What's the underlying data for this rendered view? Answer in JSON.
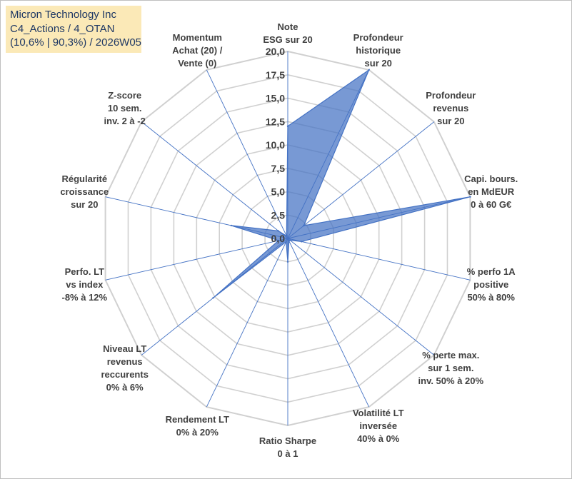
{
  "title_box": {
    "line1": "Micron Technology Inc",
    "line2": "C4_Actions / 4_OTAN",
    "line3": "(10,6% | 90,3%) / 2026W05"
  },
  "chart_data": {
    "type": "radar",
    "range": [
      0,
      20
    ],
    "ticks": [
      "0,0",
      "2,5",
      "5,0",
      "7,5",
      "10,0",
      "12,5",
      "15,0",
      "17,5",
      "20,0"
    ],
    "axes": [
      {
        "label": [
          "Note",
          "ESG sur 20"
        ],
        "value": 12.0
      },
      {
        "label": [
          "Profondeur",
          "historique",
          "sur 20"
        ],
        "value": 20.0
      },
      {
        "label": [
          "Profondeur",
          "revenus",
          "sur 20"
        ],
        "value": 2.2
      },
      {
        "label": [
          "Capi. bours.",
          "en MdEUR",
          "0 à 60 G€"
        ],
        "value": 20.0
      },
      {
        "label": [
          "% perfo 1A",
          "positive",
          "50% à 80%"
        ],
        "value": 1.5
      },
      {
        "label": [
          "% perte max.",
          "sur 1 sem.",
          "inv. 50% à 20%"
        ],
        "value": 0.3
      },
      {
        "label": [
          "Volatilité LT",
          "inversée",
          "40% à 0%"
        ],
        "value": 0.3
      },
      {
        "label": [
          "Ratio Sharpe",
          "0 à 1"
        ],
        "value": 2.5
      },
      {
        "label": [
          "Rendement LT",
          "0% à 20%"
        ],
        "value": 0.4
      },
      {
        "label": [
          "Niveau LT",
          "revenus",
          "reccurents",
          "0% à 6%"
        ],
        "value": 10.2
      },
      {
        "label": [
          "Perfo. LT",
          "vs index",
          "-8% à 12%"
        ],
        "value": 1.0
      },
      {
        "label": [
          "Régularité",
          "croissance",
          "sur 20"
        ],
        "value": 6.2
      },
      {
        "label": [
          "Z-score",
          "10 sem.",
          "inv. 2 à -2"
        ],
        "value": 1.3
      },
      {
        "label": [
          "Momentum",
          "Achat (20) /",
          "Vente (0)"
        ],
        "value": 0.3
      }
    ],
    "series": [
      {
        "name": "Micron Technology Inc",
        "color": "#4472c4"
      }
    ],
    "grid_color": "#d0d0d0",
    "axis_color": "#4472c4",
    "fill_color": "#4472c4"
  }
}
